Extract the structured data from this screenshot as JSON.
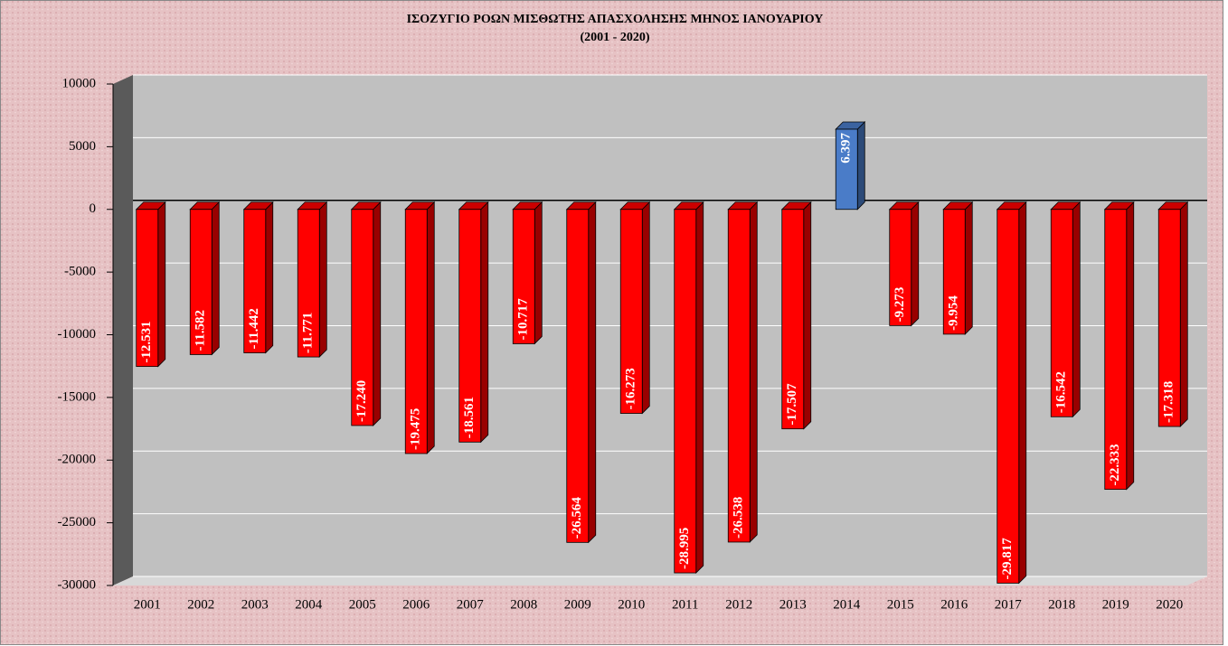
{
  "chart_data": {
    "type": "bar",
    "title": "ΙΣΟΖΥΓΙΟ ΡΟΩΝ ΜΙΣΘΩΤΗΣ ΑΠΑΣΧΟΛΗΣΗΣ ΜΗΝΟΣ  ΙΑΝΟΥΑΡΙΟΥ",
    "subtitle": "(2001 - 2020)",
    "categories": [
      "2001",
      "2002",
      "2003",
      "2004",
      "2005",
      "2006",
      "2007",
      "2008",
      "2009",
      "2010",
      "2011",
      "2012",
      "2013",
      "2014",
      "2015",
      "2016",
      "2017",
      "2018",
      "2019",
      "2020"
    ],
    "values": [
      -12531,
      -11582,
      -11442,
      -11771,
      -17240,
      -19475,
      -18561,
      -10717,
      -26564,
      -16273,
      -28995,
      -26538,
      -17507,
      6397,
      -9273,
      -9954,
      -29817,
      -16542,
      -22333,
      -17318
    ],
    "value_labels": [
      "-12.531",
      "-11.582",
      "-11.442",
      "-11.771",
      "-17.240",
      "-19.475",
      "-18.561",
      "-10.717",
      "-26.564",
      "-16.273",
      "-28.995",
      "-26.538",
      "-17.507",
      "6.397",
      "-9.273",
      "-9.954",
      "-29.817",
      "-16.542",
      "-22.333",
      "-17.318"
    ],
    "colors": [
      "#ff0000",
      "#ff0000",
      "#ff0000",
      "#ff0000",
      "#ff0000",
      "#ff0000",
      "#ff0000",
      "#ff0000",
      "#ff0000",
      "#ff0000",
      "#ff0000",
      "#ff0000",
      "#ff0000",
      "#4a7cc8",
      "#ff0000",
      "#ff0000",
      "#ff0000",
      "#ff0000",
      "#ff0000",
      "#ff0000"
    ],
    "ylim": [
      -30000,
      10000
    ],
    "yticks": [
      10000,
      5000,
      0,
      -5000,
      -10000,
      -15000,
      -20000,
      -25000,
      -30000
    ],
    "grid": true
  }
}
